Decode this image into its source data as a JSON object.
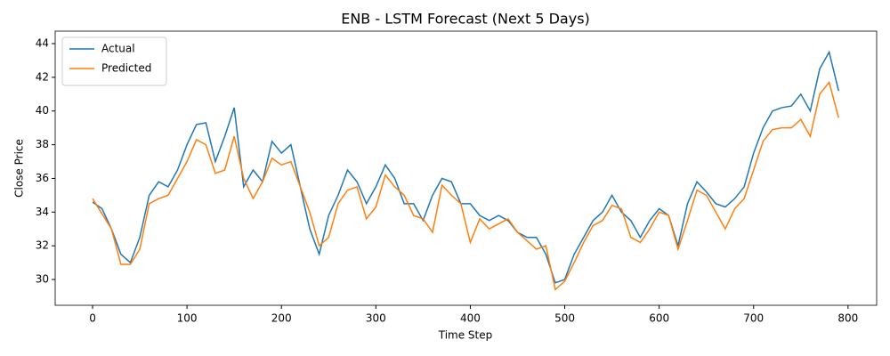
{
  "chart_data": {
    "type": "line",
    "title": "ENB - LSTM Forecast (Next 5 Days)",
    "x_label": "Time Step",
    "y_label": "Close Price",
    "x": [
      0,
      10,
      20,
      30,
      40,
      50,
      60,
      70,
      80,
      90,
      100,
      110,
      120,
      130,
      140,
      150,
      160,
      170,
      180,
      190,
      200,
      210,
      220,
      230,
      240,
      250,
      260,
      270,
      280,
      290,
      300,
      310,
      320,
      330,
      340,
      350,
      360,
      370,
      380,
      390,
      400,
      410,
      420,
      430,
      440,
      450,
      460,
      470,
      480,
      490,
      500,
      510,
      520,
      530,
      540,
      550,
      560,
      570,
      580,
      590,
      600,
      610,
      620,
      630,
      640,
      650,
      660,
      670,
      680,
      690,
      700,
      710,
      720,
      730,
      740,
      750,
      760,
      770,
      780,
      790
    ],
    "series": [
      {
        "name": "Actual",
        "color": "#1f77b4",
        "values": [
          34.6,
          34.2,
          33.0,
          31.5,
          31.0,
          32.5,
          35.0,
          35.8,
          35.5,
          36.5,
          38.0,
          39.2,
          39.3,
          37.0,
          38.5,
          40.2,
          35.5,
          36.5,
          35.8,
          38.2,
          37.5,
          38.0,
          35.5,
          33.0,
          31.5,
          33.8,
          35.0,
          36.5,
          35.8,
          34.5,
          35.5,
          36.8,
          36.0,
          34.5,
          34.5,
          33.5,
          35.0,
          36.0,
          35.8,
          34.5,
          34.5,
          33.8,
          33.5,
          33.8,
          33.5,
          32.8,
          32.5,
          32.5,
          31.5,
          29.8,
          30.0,
          31.5,
          32.5,
          33.5,
          34.0,
          35.0,
          34.0,
          33.5,
          32.5,
          33.5,
          34.2,
          33.8,
          32.0,
          34.5,
          35.8,
          35.2,
          34.5,
          34.3,
          34.8,
          35.5,
          37.5,
          39.0,
          40.0,
          40.2,
          40.3,
          41.0,
          40.0,
          42.5,
          43.5,
          41.2
        ]
      },
      {
        "name": "Predicted",
        "color": "#ff7f0e",
        "values": [
          34.8,
          33.9,
          33.0,
          30.9,
          30.9,
          31.8,
          34.5,
          34.8,
          35.0,
          36.0,
          37.0,
          38.3,
          38.0,
          36.3,
          36.5,
          38.5,
          36.0,
          34.8,
          35.8,
          37.2,
          36.8,
          37.0,
          35.5,
          34.0,
          32.0,
          32.5,
          34.5,
          35.3,
          35.5,
          33.6,
          34.3,
          36.2,
          35.5,
          35.0,
          33.8,
          33.6,
          32.8,
          35.6,
          35.0,
          34.5,
          32.2,
          33.6,
          33.0,
          33.3,
          33.6,
          32.8,
          32.3,
          31.8,
          32.0,
          29.4,
          29.9,
          31.0,
          32.2,
          33.2,
          33.5,
          34.4,
          34.2,
          32.5,
          32.2,
          33.0,
          34.0,
          33.8,
          31.8,
          33.5,
          35.3,
          35.0,
          34.0,
          33.0,
          34.2,
          34.8,
          36.5,
          38.2,
          38.9,
          39.0,
          39.0,
          39.5,
          38.5,
          41.0,
          41.7,
          39.6
        ]
      }
    ],
    "xlim": [
      -39.6,
      830.3
    ],
    "ylim": [
      28.47,
      44.74
    ],
    "xticks": [
      0,
      100,
      200,
      300,
      400,
      500,
      600,
      700,
      800
    ],
    "yticks": [
      30,
      32,
      34,
      36,
      38,
      40,
      42,
      44
    ],
    "legend": "upper left"
  }
}
